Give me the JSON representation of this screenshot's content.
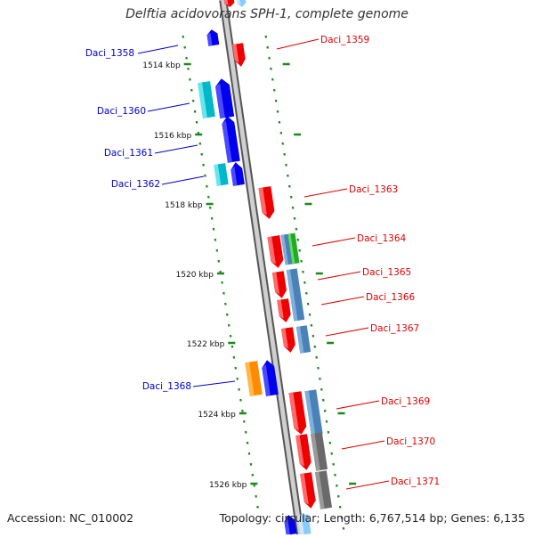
{
  "title": "Delftia acidovorans SPH-1, complete genome",
  "footer": {
    "accession": "Accession: NC_010002",
    "topology": "Topology: circular; Length: 6,767,514 bp; Genes: 6,135"
  },
  "colors": {
    "backbone": "#8a8a8a",
    "tick": "#1a8a1a",
    "forward_label": "#0000cc",
    "reverse_label": "#dd0000"
  },
  "ticks": [
    {
      "label": "1514 kbp",
      "kbp": 1514
    },
    {
      "label": "1516 kbp",
      "kbp": 1516
    },
    {
      "label": "1518 kbp",
      "kbp": 1518
    },
    {
      "label": "1520 kbp",
      "kbp": 1520
    },
    {
      "label": "1522 kbp",
      "kbp": 1522
    },
    {
      "label": "1524 kbp",
      "kbp": 1524
    },
    {
      "label": "1526 kbp",
      "kbp": 1526
    }
  ],
  "genes": [
    {
      "label": "Daci_1358",
      "strand": "forward"
    },
    {
      "label": "Daci_1359",
      "strand": "reverse"
    },
    {
      "label": "Daci_1360",
      "strand": "forward"
    },
    {
      "label": "Daci_1361",
      "strand": "forward"
    },
    {
      "label": "Daci_1362",
      "strand": "forward"
    },
    {
      "label": "Daci_1363",
      "strand": "reverse"
    },
    {
      "label": "Daci_1364",
      "strand": "reverse"
    },
    {
      "label": "Daci_1365",
      "strand": "reverse"
    },
    {
      "label": "Daci_1366",
      "strand": "reverse"
    },
    {
      "label": "Daci_1367",
      "strand": "reverse"
    },
    {
      "label": "Daci_1368",
      "strand": "forward"
    },
    {
      "label": "Daci_1369",
      "strand": "reverse"
    },
    {
      "label": "Daci_1370",
      "strand": "reverse"
    },
    {
      "label": "Daci_1371",
      "strand": "reverse"
    }
  ]
}
